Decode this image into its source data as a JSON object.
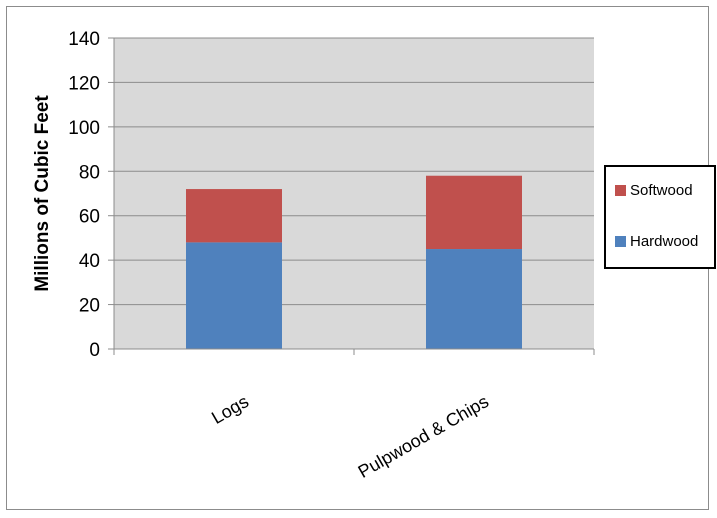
{
  "chart_data": {
    "type": "bar",
    "stacked": true,
    "categories": [
      "Logs",
      "Pulpwood & Chips"
    ],
    "series": [
      {
        "name": "Hardwood",
        "values": [
          48,
          45
        ],
        "color": "#4f81bd"
      },
      {
        "name": "Softwood",
        "values": [
          24,
          33
        ],
        "color": "#c0504d"
      }
    ],
    "ylabel": "Millions of Cubic Feet",
    "xlabel": "",
    "ylim": [
      0,
      140
    ],
    "yticks": [
      0,
      20,
      40,
      60,
      80,
      100,
      120,
      140
    ],
    "grid": true,
    "legend_position": "right",
    "plot_background": "#d9d9d9",
    "gridline_color": "#8c8c8c"
  }
}
